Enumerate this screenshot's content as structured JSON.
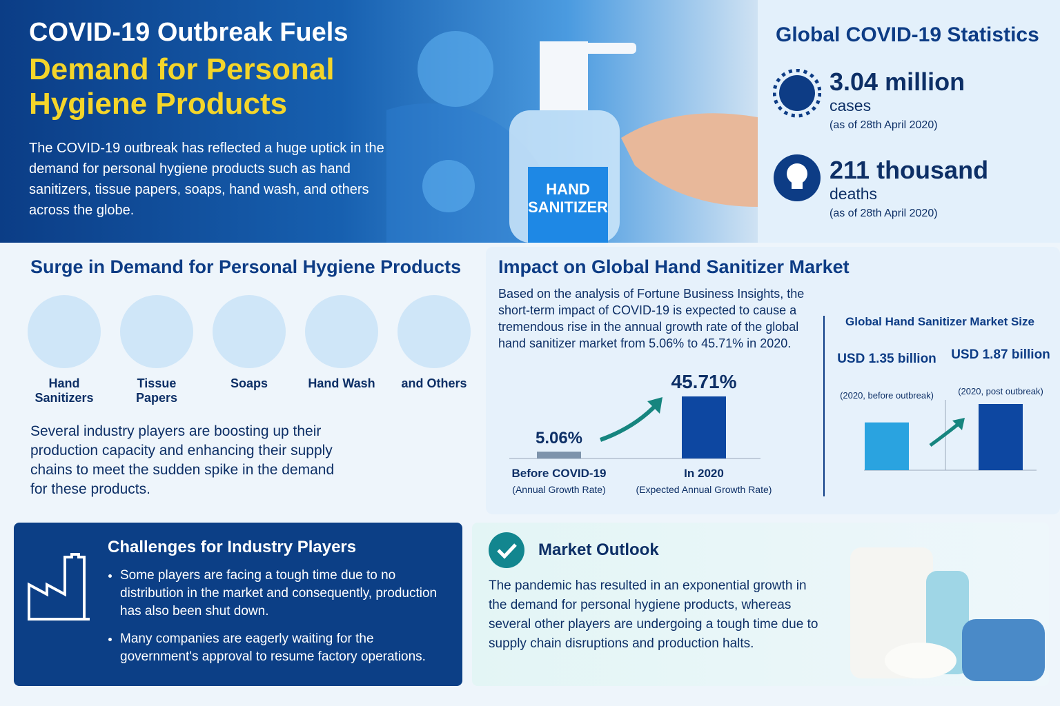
{
  "header": {
    "title_line1": "COVID-19 Outbreak Fuels",
    "title_line2": "Demand for Personal Hygiene Products",
    "intro": "The COVID-19 outbreak has reflected a huge uptick in the demand for personal hygiene products such as hand sanitizers, tissue papers, soaps, hand wash, and others across the globe.",
    "bottle_label": "HAND SANITIZER"
  },
  "stats": {
    "title": "Global COVID-19 Statistics",
    "items": [
      {
        "value": "3.04 million",
        "label": "cases",
        "note": "(as of 28th April 2020)"
      },
      {
        "value": "211 thousand",
        "label": "deaths",
        "note": "(as of 28th April 2020)"
      }
    ]
  },
  "surge": {
    "title": "Surge in Demand for Personal Hygiene Products",
    "products": [
      "Hand Sanitizers",
      "Tissue Papers",
      "Soaps",
      "Hand Wash",
      "and Others"
    ],
    "text": "Several industry players are boosting up their production capacity and enhancing their supply chains to meet the sudden spike in the demand for these products."
  },
  "impact": {
    "title": "Impact on Global Hand Sanitizer Market",
    "text": "Based on the analysis of Fortune Business Insights, the short-term impact of COVID-19 is expected to cause a tremendous rise in the annual growth rate of the global hand sanitizer market from 5.06% to 45.71% in 2020."
  },
  "chart_data": [
    {
      "type": "bar",
      "categories": [
        "Before COVID-19",
        "In 2020"
      ],
      "category_notes": [
        "(Annual Growth Rate)",
        "(Expected Annual Growth Rate)"
      ],
      "values": [
        5.06,
        45.71
      ],
      "value_labels": [
        "5.06%",
        "45.71%"
      ],
      "colors": [
        "#7d93ab",
        "#0d47a1"
      ]
    },
    {
      "type": "bar",
      "title": "Global Hand Sanitizer Market Size",
      "categories": [
        "(2020, before outbreak)",
        "(2020, post outbreak)"
      ],
      "values": [
        1.35,
        1.87
      ],
      "value_labels": [
        "USD 1.35 billion",
        "USD 1.87 billion"
      ],
      "colors": [
        "#2aa3e0",
        "#0d47a1"
      ]
    }
  ],
  "challenges": {
    "title": "Challenges for Industry Players",
    "bullets": [
      "Some players are facing a tough time due to no distribution in the market and consequently, production has also been shut down.",
      "Many companies are eagerly waiting for the government's approval to resume factory operations."
    ]
  },
  "outlook": {
    "title": "Market Outlook",
    "text": "The pandemic has resulted in an exponential growth in the demand for personal hygiene products, whereas several other players are undergoing a tough time due to supply chain disruptions and production halts."
  }
}
